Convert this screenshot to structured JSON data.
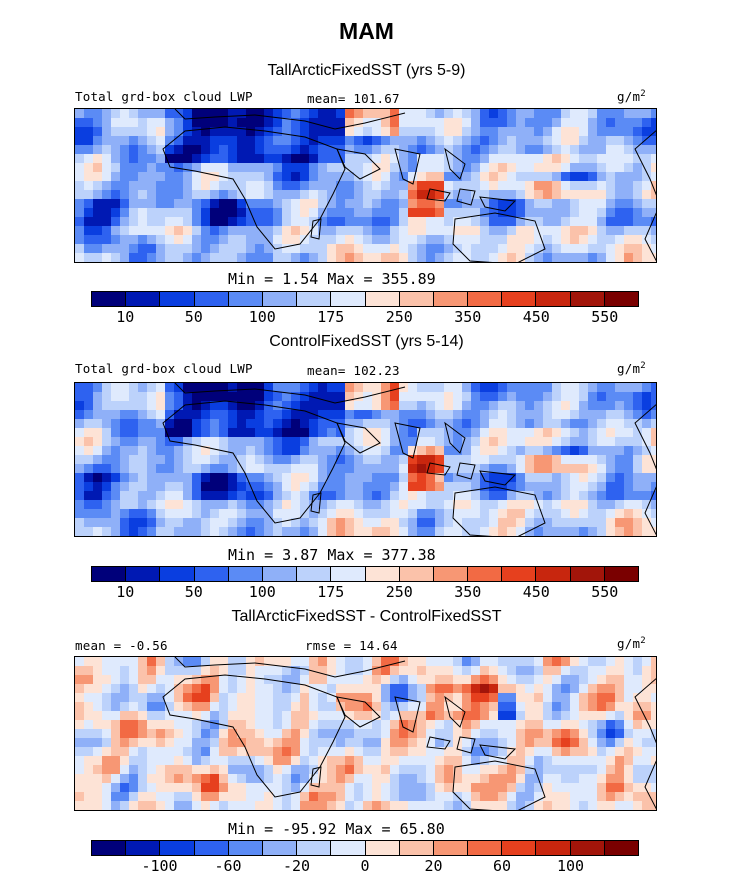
{
  "main_title": "MAM",
  "colors": {
    "abs_scale": [
      "#00007a",
      "#0019b3",
      "#0a3ee0",
      "#2e62f0",
      "#5b8bf5",
      "#8fb0f8",
      "#bcd2fb",
      "#dfeafd",
      "#fde3d6",
      "#fbc2aa",
      "#f79774",
      "#f26a44",
      "#e6401e",
      "#c8260e",
      "#a2150a",
      "#7a0000"
    ],
    "diff_scale": [
      "#00007a",
      "#0019b3",
      "#0a3ee0",
      "#2e62f0",
      "#5b8bf5",
      "#8fb0f8",
      "#bcd2fb",
      "#dfeafd",
      "#fde3d6",
      "#fbc2aa",
      "#f79774",
      "#f26a44",
      "#e6401e",
      "#c8260e",
      "#a2150a",
      "#7a0000"
    ],
    "coast": "#000000"
  },
  "panels": [
    {
      "title": "TallArcticFixedSST (yrs 5-9)",
      "var_label": "Total grd-box cloud LWP",
      "mean_text": "mean= 101.67",
      "unit": "g/m",
      "unit_sup": "2",
      "minmax_text": "Min =    1.54 Max = 355.89",
      "ticks": [
        "10",
        "50",
        "100",
        "175",
        "250",
        "350",
        "450",
        "550"
      ],
      "field": "abs1"
    },
    {
      "title": "ControlFixedSST (yrs 5-14)",
      "var_label": "Total grd-box cloud LWP",
      "mean_text": "mean= 102.23",
      "unit": "g/m",
      "unit_sup": "2",
      "minmax_text": "Min =    3.87 Max = 377.38",
      "ticks": [
        "10",
        "50",
        "100",
        "175",
        "250",
        "350",
        "450",
        "550"
      ],
      "field": "abs2"
    },
    {
      "title": "TallArcticFixedSST - ControlFixedSST",
      "mean_text": "mean =  -0.56",
      "rmse_text": "rmse =  14.64",
      "unit": "g/m",
      "unit_sup": "2",
      "minmax_text": "Min = -95.92 Max =  65.80",
      "ticks": [
        "-100",
        "-60",
        "-20",
        "0",
        "20",
        "60",
        "100"
      ],
      "field": "diff"
    }
  ],
  "chart_data": [
    {
      "type": "heatmap",
      "title": "TallArcticFixedSST (yrs 5-9)",
      "variable": "Total grd-box cloud LWP",
      "units": "g/m2",
      "mean": 101.67,
      "min": 1.54,
      "max": 355.89,
      "colorbar_levels": [
        10,
        50,
        100,
        175,
        250,
        350,
        450,
        550
      ]
    },
    {
      "type": "heatmap",
      "title": "ControlFixedSST (yrs 5-14)",
      "variable": "Total grd-box cloud LWP",
      "units": "g/m2",
      "mean": 102.23,
      "min": 3.87,
      "max": 377.38,
      "colorbar_levels": [
        10,
        50,
        100,
        175,
        250,
        350,
        450,
        550
      ]
    },
    {
      "type": "heatmap",
      "title": "TallArcticFixedSST - ControlFixedSST",
      "units": "g/m2",
      "mean": -0.56,
      "rmse": 14.64,
      "min": -95.92,
      "max": 65.8,
      "colorbar_levels": [
        -100,
        -60,
        -20,
        0,
        20,
        60,
        100
      ]
    }
  ]
}
